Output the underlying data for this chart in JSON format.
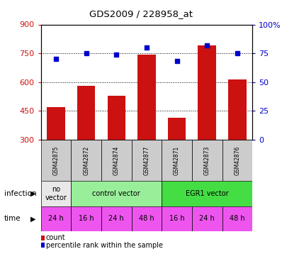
{
  "title": "GDS2009 / 228958_at",
  "samples": [
    "GSM42875",
    "GSM42872",
    "GSM42874",
    "GSM42877",
    "GSM42871",
    "GSM42873",
    "GSM42876"
  ],
  "counts": [
    470,
    582,
    527,
    743,
    415,
    790,
    612
  ],
  "percentiles": [
    70,
    75,
    74,
    80,
    68,
    82,
    75
  ],
  "ylim_left": [
    300,
    900
  ],
  "ylim_right": [
    0,
    100
  ],
  "yticks_left": [
    300,
    450,
    600,
    750,
    900
  ],
  "yticks_right": [
    0,
    25,
    50,
    75,
    100
  ],
  "bar_color": "#cc1111",
  "dot_color": "#0000cc",
  "infection_groups": [
    {
      "label": "no\nvector",
      "span": [
        0,
        1
      ],
      "color": "#e8e8e8"
    },
    {
      "label": "control vector",
      "span": [
        1,
        4
      ],
      "color": "#99ee99"
    },
    {
      "label": "EGR1 vector",
      "span": [
        4,
        7
      ],
      "color": "#44dd44"
    }
  ],
  "time_labels": [
    "24 h",
    "16 h",
    "24 h",
    "48 h",
    "16 h",
    "24 h",
    "48 h"
  ],
  "time_color": "#ee55ee",
  "sample_bg_color": "#cccccc",
  "grid_color": "#000000",
  "left_tick_color": "#cc1111",
  "right_tick_color": "#0000cc",
  "legend_count_label": "count",
  "legend_pct_label": "percentile rank within the sample",
  "infection_label": "infection",
  "time_label": "time"
}
